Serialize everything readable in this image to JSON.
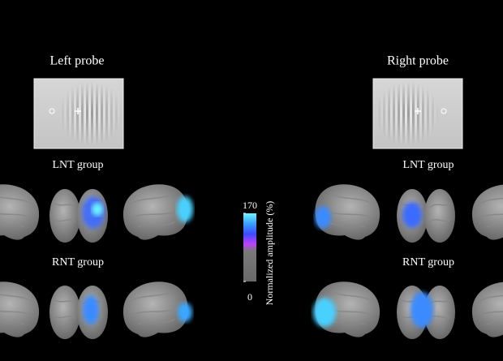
{
  "panels": [
    {
      "title": "Left probe",
      "groups": [
        "LNT group",
        "RNT group"
      ]
    },
    {
      "title": "Right probe",
      "groups": [
        "LNT group",
        "RNT group"
      ]
    }
  ],
  "colorbar": {
    "label": "Normalized amplitude (%)",
    "clim": [
      0,
      170
    ],
    "ticks": [
      0,
      170
    ]
  }
}
